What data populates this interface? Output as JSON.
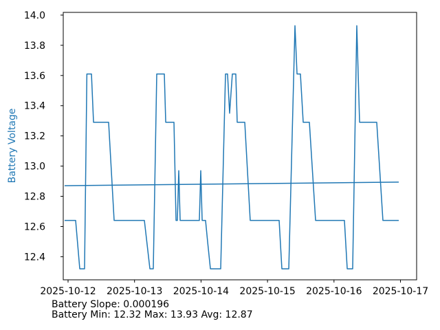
{
  "chart_data": {
    "type": "line",
    "title": "",
    "xlabel": "",
    "ylabel": "Battery Voltage",
    "x_unit": "days since 2025-10-12",
    "xlim": [
      -0.0724,
      5.243
    ],
    "ylim": [
      12.247,
      14.018
    ],
    "grid": false,
    "legend": "none",
    "x_ticks": [
      {
        "value": 0,
        "label": "2025-10-12"
      },
      {
        "value": 1,
        "label": "2025-10-13"
      },
      {
        "value": 2,
        "label": "2025-10-14"
      },
      {
        "value": 3,
        "label": "2025-10-15"
      },
      {
        "value": 4,
        "label": "2025-10-16"
      },
      {
        "value": 5,
        "label": "2025-10-17"
      }
    ],
    "y_ticks": [
      {
        "value": 12.4,
        "label": "12.4"
      },
      {
        "value": 12.6,
        "label": "12.6"
      },
      {
        "value": 12.8,
        "label": "12.8"
      },
      {
        "value": 13.0,
        "label": "13.0"
      },
      {
        "value": 13.2,
        "label": "13.2"
      },
      {
        "value": 13.4,
        "label": "13.4"
      },
      {
        "value": 13.6,
        "label": "13.6"
      },
      {
        "value": 13.8,
        "label": "13.8"
      },
      {
        "value": 14.0,
        "label": "14.0"
      }
    ],
    "series": [
      {
        "name": "battery-voltage",
        "color": "#1f77b4",
        "width": 1.5,
        "points": [
          [
            -0.052,
            12.64
          ],
          [
            0.114,
            12.64
          ],
          [
            0.176,
            12.32
          ],
          [
            0.248,
            12.32
          ],
          [
            0.283,
            13.61
          ],
          [
            0.352,
            13.61
          ],
          [
            0.383,
            13.29
          ],
          [
            0.61,
            13.29
          ],
          [
            0.693,
            12.64
          ],
          [
            1.148,
            12.64
          ],
          [
            1.231,
            12.32
          ],
          [
            1.282,
            12.32
          ],
          [
            1.334,
            13.61
          ],
          [
            1.448,
            13.61
          ],
          [
            1.469,
            13.29
          ],
          [
            1.593,
            13.29
          ],
          [
            1.624,
            12.64
          ],
          [
            1.644,
            12.64
          ],
          [
            1.665,
            12.97
          ],
          [
            1.686,
            12.64
          ],
          [
            1.954,
            12.64
          ],
          [
            1.975,
            12.64
          ],
          [
            1.996,
            12.97
          ],
          [
            2.017,
            12.64
          ],
          [
            2.068,
            12.64
          ],
          [
            2.099,
            12.5
          ],
          [
            2.141,
            12.32
          ],
          [
            2.296,
            12.32
          ],
          [
            2.368,
            13.61
          ],
          [
            2.399,
            13.61
          ],
          [
            2.43,
            13.35
          ],
          [
            2.471,
            13.61
          ],
          [
            2.523,
            13.61
          ],
          [
            2.544,
            13.29
          ],
          [
            2.658,
            13.29
          ],
          [
            2.74,
            12.64
          ],
          [
            3.175,
            12.64
          ],
          [
            3.216,
            12.32
          ],
          [
            3.32,
            12.32
          ],
          [
            3.413,
            13.93
          ],
          [
            3.444,
            13.61
          ],
          [
            3.495,
            13.61
          ],
          [
            3.537,
            13.29
          ],
          [
            3.63,
            13.29
          ],
          [
            3.723,
            12.64
          ],
          [
            4.157,
            12.64
          ],
          [
            4.199,
            12.32
          ],
          [
            4.281,
            12.32
          ],
          [
            4.343,
            13.93
          ],
          [
            4.385,
            13.29
          ],
          [
            4.643,
            13.29
          ],
          [
            4.736,
            12.64
          ],
          [
            4.974,
            12.64
          ]
        ]
      },
      {
        "name": "battery-trend",
        "color": "#1f77b4",
        "width": 1.5,
        "points": [
          [
            -0.052,
            12.87
          ],
          [
            4.974,
            12.894
          ]
        ]
      }
    ],
    "annotations": [
      "Battery Slope: 0.000196",
      "Battery Min: 12.32 Max: 13.93 Avg: 12.87"
    ]
  },
  "labels": {
    "ylabel": "Battery Voltage",
    "slope_line": "Battery Slope: 0.000196",
    "minmax_line": "Battery Min: 12.32 Max: 13.93 Avg: 12.87"
  },
  "colors": {
    "line": "#1f77b4",
    "ylabel": "#1f77b4",
    "axis": "#000000",
    "tick_label": "#000000",
    "annotation": "#000000",
    "background": "#ffffff"
  },
  "stats": {
    "slope": "0.000196",
    "min": "12.32",
    "max": "13.93",
    "avg": "12.87"
  }
}
